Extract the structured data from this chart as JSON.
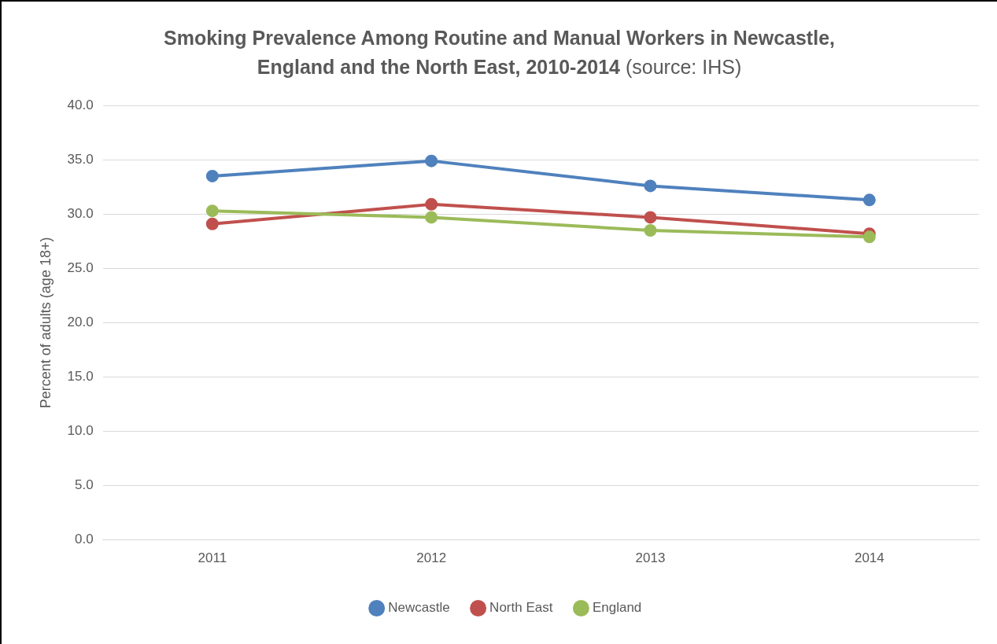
{
  "chart_data": {
    "type": "line",
    "title": "Smoking Prevalence Among Routine and Manual Workers in Newcastle, England and the North East, 2010-2014",
    "annotations": [
      "(source: IHS)"
    ],
    "ylabel": "Percent of adults (age 18+)",
    "categories": [
      "2011",
      "2012",
      "2013",
      "2014"
    ],
    "series": [
      {
        "name": "Newcastle",
        "color": "#4f81bd",
        "values": [
          33.5,
          34.9,
          32.6,
          31.3
        ]
      },
      {
        "name": "North East",
        "color": "#c0504d",
        "values": [
          29.1,
          30.9,
          29.7,
          28.2
        ]
      },
      {
        "name": "England",
        "color": "#9bbb59",
        "values": [
          30.3,
          29.7,
          28.5,
          27.9
        ]
      }
    ],
    "ylim": [
      0,
      40
    ],
    "yticks": [
      {
        "value": 0,
        "label": "0.0"
      },
      {
        "value": 5,
        "label": "5.0"
      },
      {
        "value": 10,
        "label": "10.0"
      },
      {
        "value": 15,
        "label": "15.0"
      },
      {
        "value": 20,
        "label": "20.0"
      },
      {
        "value": 25,
        "label": "25.0"
      },
      {
        "value": 30,
        "label": "30.0"
      },
      {
        "value": 35,
        "label": "35.0"
      },
      {
        "value": 40,
        "label": "40.0"
      }
    ],
    "grid": "y",
    "legend": "bottom",
    "marker": "circle",
    "line_style": "solid"
  }
}
